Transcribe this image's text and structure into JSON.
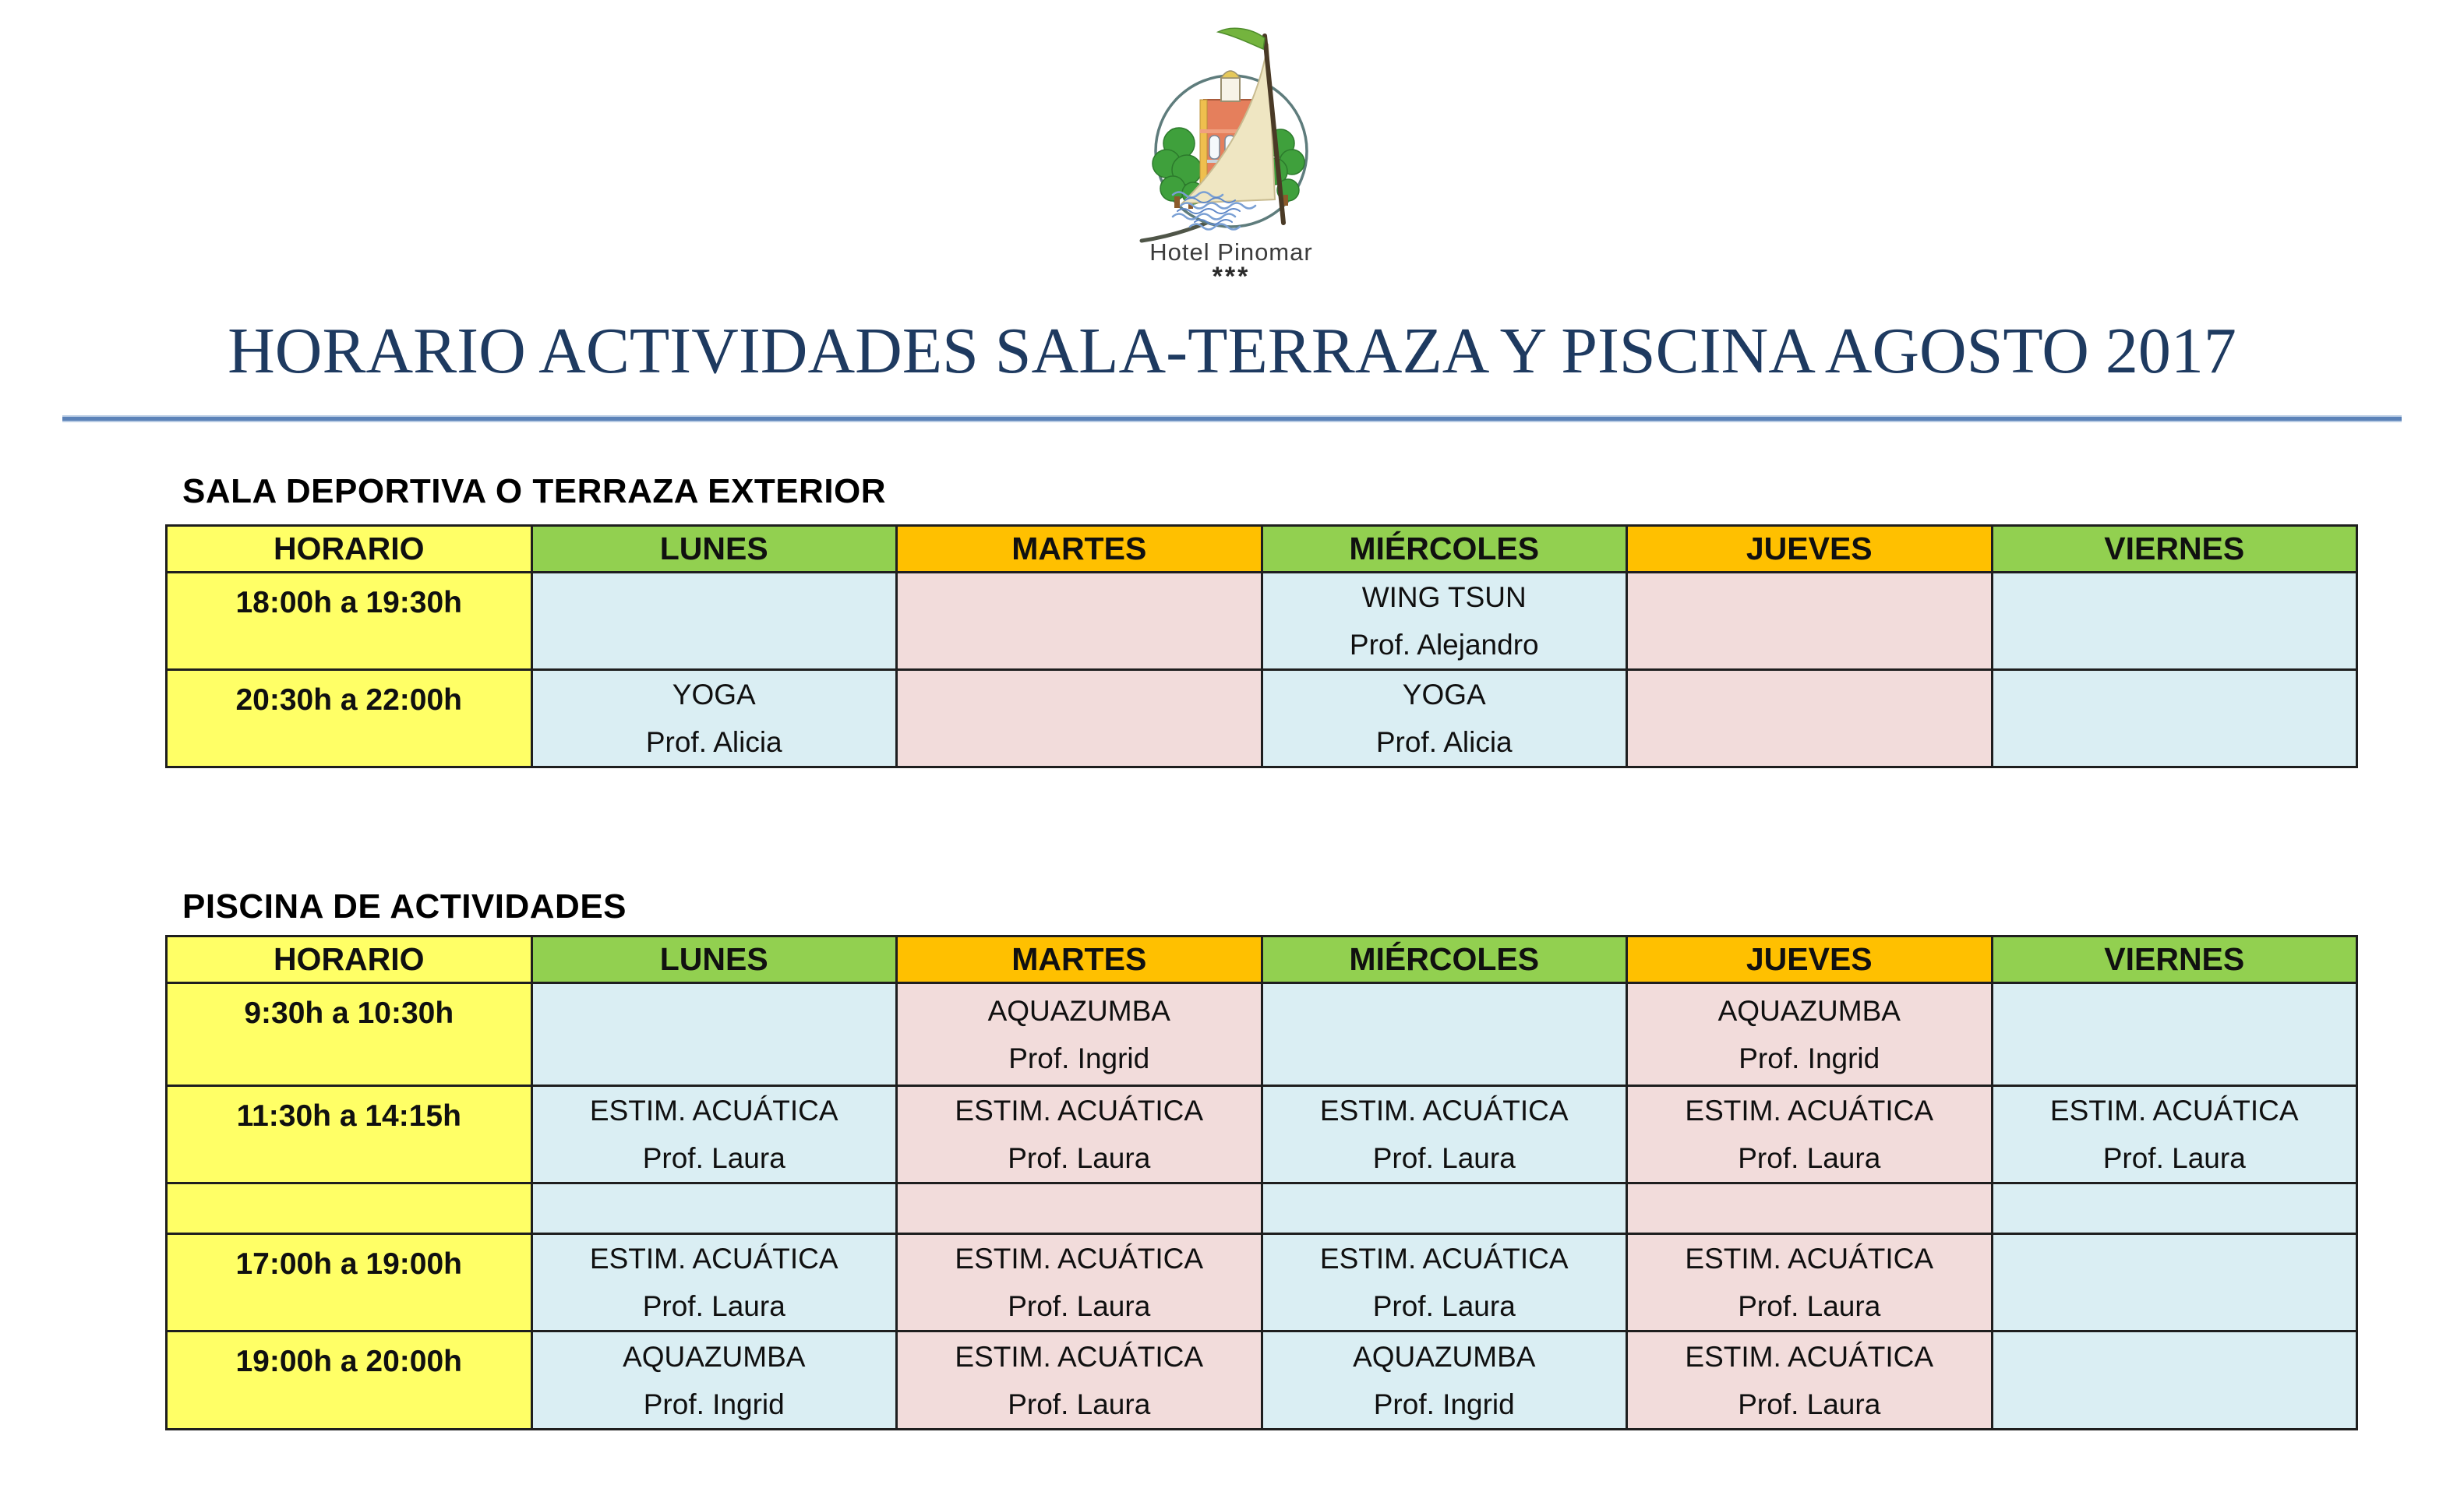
{
  "logo": {
    "hotel_name": "Hotel Pinomar",
    "stars": "***"
  },
  "title": "HORARIO ACTIVIDADES SALA-TERRAZA Y PISCINA AGOSTO 2017",
  "colors": {
    "yellow": "#FFFF66",
    "green": "#92D050",
    "orange": "#FFC000",
    "light_blue": "#DAEEF3",
    "light_pink": "#F2DCDB",
    "title_navy": "#1E3A60",
    "rule_blue": "#5B82B8",
    "border_dark": "#1E1E1E"
  },
  "tables": [
    {
      "section_title": "SALA DEPORTIVA O TERRAZA EXTERIOR",
      "headers": [
        "HORARIO",
        "LUNES",
        "MARTES",
        "MIÉRCOLES",
        "JUEVES",
        "VIERNES"
      ],
      "rows": [
        {
          "time": "18:00h a 19:30h",
          "cells": [
            [
              "",
              ""
            ],
            [
              "",
              ""
            ],
            [
              "WING TSUN",
              "Prof. Alejandro"
            ],
            [
              "",
              ""
            ],
            [
              "",
              ""
            ]
          ]
        },
        {
          "time": "20:30h a 22:00h",
          "cells": [
            [
              "YOGA",
              "Prof. Alicia"
            ],
            [
              "",
              ""
            ],
            [
              "YOGA",
              "Prof. Alicia"
            ],
            [
              "",
              ""
            ],
            [
              "",
              ""
            ]
          ]
        }
      ]
    },
    {
      "section_title": "PISCINA DE ACTIVIDADES",
      "headers": [
        "HORARIO",
        "LUNES",
        "MARTES",
        "MIÉRCOLES",
        "JUEVES",
        "VIERNES"
      ],
      "rows": [
        {
          "time": "9:30h a 10:30h",
          "cells": [
            [
              "",
              ""
            ],
            [
              "AQUAZUMBA",
              "Prof. Ingrid"
            ],
            [
              "",
              ""
            ],
            [
              "AQUAZUMBA",
              "Prof. Ingrid"
            ],
            [
              "",
              ""
            ]
          ]
        },
        {
          "time": "11:30h a 14:15h",
          "cells": [
            [
              "ESTIM. ACUÁTICA",
              "Prof. Laura"
            ],
            [
              "ESTIM. ACUÁTICA",
              "Prof. Laura"
            ],
            [
              "ESTIM. ACUÁTICA",
              "Prof. Laura"
            ],
            [
              "ESTIM. ACUÁTICA",
              "Prof. Laura"
            ],
            [
              "ESTIM. ACUÁTICA",
              "Prof. Laura"
            ]
          ]
        },
        {
          "time": "",
          "spacer": true,
          "cells": [
            [
              "",
              ""
            ],
            [
              "",
              ""
            ],
            [
              "",
              ""
            ],
            [
              "",
              ""
            ],
            [
              "",
              ""
            ]
          ]
        },
        {
          "time": "17:00h a 19:00h",
          "cells": [
            [
              "ESTIM. ACUÁTICA",
              "Prof. Laura"
            ],
            [
              "ESTIM. ACUÁTICA",
              "Prof. Laura"
            ],
            [
              "ESTIM. ACUÁTICA",
              "Prof. Laura"
            ],
            [
              "ESTIM. ACUÁTICA",
              "Prof. Laura"
            ],
            [
              "",
              ""
            ]
          ]
        },
        {
          "time": "19:00h a 20:00h",
          "cells": [
            [
              "AQUAZUMBA",
              "Prof. Ingrid"
            ],
            [
              "ESTIM. ACUÁTICA",
              "Prof. Laura"
            ],
            [
              "AQUAZUMBA",
              "Prof. Ingrid"
            ],
            [
              "ESTIM. ACUÁTICA",
              "Prof. Laura"
            ],
            [
              "",
              ""
            ]
          ]
        }
      ]
    }
  ]
}
